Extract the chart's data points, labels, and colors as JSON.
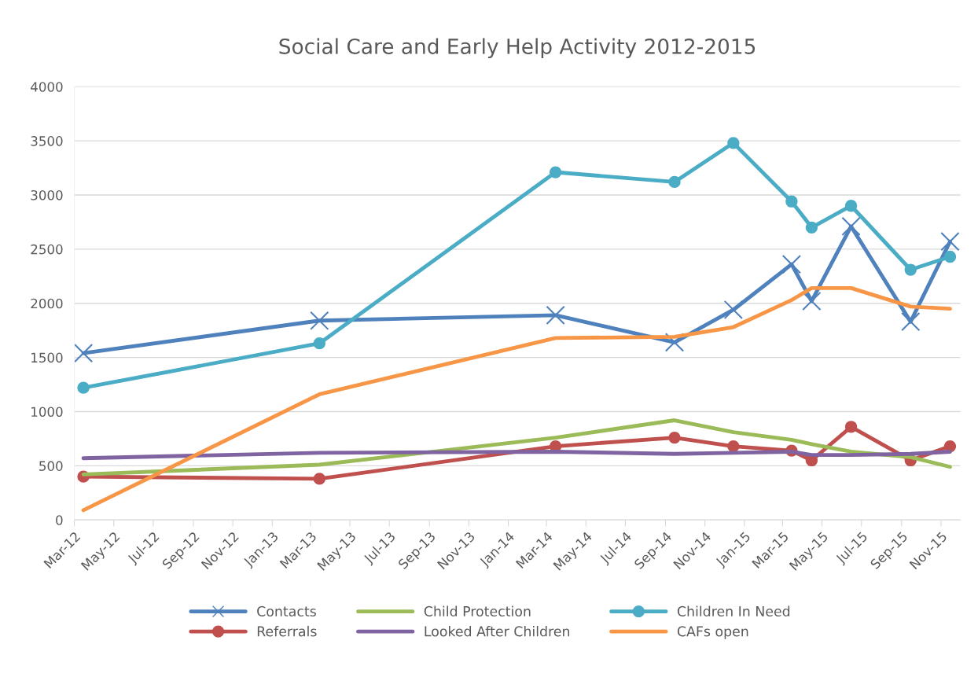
{
  "chart_data": {
    "type": "line",
    "title": "Social Care and Early Help Activity 2012-2015",
    "x": [
      "2012-03-15",
      "2013-03-15",
      "2014-03-15",
      "2014-09-15",
      "2014-12-15",
      "2015-03-15",
      "2015-04-15",
      "2015-06-15",
      "2015-09-15",
      "2015-11-15"
    ],
    "series": [
      {
        "name": "Contacts",
        "color": "#4f81bd",
        "marker": "cross",
        "values": [
          1540,
          1840,
          1890,
          1640,
          1940,
          2360,
          2020,
          2710,
          1830,
          2570
        ]
      },
      {
        "name": "Referrals",
        "color": "#c0504d",
        "marker": "circle",
        "values": [
          400,
          380,
          680,
          760,
          680,
          640,
          550,
          860,
          550,
          680
        ]
      },
      {
        "name": "Child Protection",
        "color": "#9bbb59",
        "values": [
          420,
          510,
          760,
          920,
          810,
          740,
          700,
          630,
          580,
          490
        ]
      },
      {
        "name": "Looked After Children",
        "color": "#8064a2",
        "values": [
          570,
          620,
          630,
          610,
          620,
          630,
          600,
          600,
          610,
          630
        ]
      },
      {
        "name": "Children In Need",
        "color": "#4bacc6",
        "marker": "circle",
        "values": [
          1220,
          1630,
          3210,
          3120,
          3480,
          2940,
          2700,
          2900,
          2310,
          2430
        ]
      },
      {
        "name": "CAFs open",
        "color": "#f79646",
        "values": [
          90,
          1160,
          1680,
          1690,
          1780,
          2030,
          2140,
          2140,
          1970,
          1950
        ]
      }
    ],
    "xlim": [
      "2012-03-01",
      "2015-12-01"
    ],
    "xticks": [
      {
        "value": "2012-03-01",
        "label": "Mar-12"
      },
      {
        "value": "2012-05-01",
        "label": "May-12"
      },
      {
        "value": "2012-07-01",
        "label": "Jul-12"
      },
      {
        "value": "2012-09-01",
        "label": "Sep-12"
      },
      {
        "value": "2012-11-01",
        "label": "Nov-12"
      },
      {
        "value": "2013-01-01",
        "label": "Jan-13"
      },
      {
        "value": "2013-03-01",
        "label": "Mar-13"
      },
      {
        "value": "2013-05-01",
        "label": "May-13"
      },
      {
        "value": "2013-07-01",
        "label": "Jul-13"
      },
      {
        "value": "2013-09-01",
        "label": "Sep-13"
      },
      {
        "value": "2013-11-01",
        "label": "Nov-13"
      },
      {
        "value": "2014-01-01",
        "label": "Jan-14"
      },
      {
        "value": "2014-03-01",
        "label": "Mar-14"
      },
      {
        "value": "2014-05-01",
        "label": "May-14"
      },
      {
        "value": "2014-07-01",
        "label": "Jul-14"
      },
      {
        "value": "2014-09-01",
        "label": "Sep-14"
      },
      {
        "value": "2014-11-01",
        "label": "Nov-14"
      },
      {
        "value": "2015-01-01",
        "label": "Jan-15"
      },
      {
        "value": "2015-03-01",
        "label": "Mar-15"
      },
      {
        "value": "2015-05-01",
        "label": "May-15"
      },
      {
        "value": "2015-07-01",
        "label": "Jul-15"
      },
      {
        "value": "2015-09-01",
        "label": "Sep-15"
      },
      {
        "value": "2015-11-01",
        "label": "Nov-15"
      }
    ],
    "ylim": [
      0,
      4000
    ],
    "yticks": [
      0,
      500,
      1000,
      1500,
      2000,
      2500,
      3000,
      3500,
      4000
    ],
    "grid": "y",
    "legend": "bottom",
    "line_style": "solid"
  }
}
